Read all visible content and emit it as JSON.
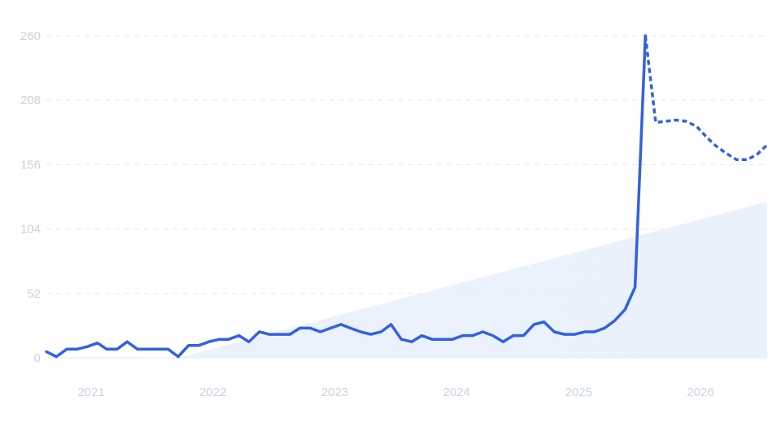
{
  "chart_data": {
    "type": "line",
    "title": "",
    "xlabel": "",
    "ylabel": "",
    "ylim": [
      0,
      260
    ],
    "xlim": [
      "2020-09-01",
      "2026-08-01"
    ],
    "grid": true,
    "legend": "none",
    "y_ticks": [
      "0",
      "52",
      "104",
      "156",
      "208",
      "260"
    ],
    "x_ticks": [
      {
        "label": "2021",
        "date": "2021-01-01"
      },
      {
        "label": "2022",
        "date": "2022-01-01"
      },
      {
        "label": "2023",
        "date": "2023-01-01"
      },
      {
        "label": "2024",
        "date": "2024-01-01"
      },
      {
        "label": "2025",
        "date": "2025-01-01"
      },
      {
        "label": "2026",
        "date": "2026-01-01"
      }
    ],
    "colors": {
      "line": "#3162e0",
      "area": "#eaf1fd",
      "grid": "#e3e8f1",
      "tick": "#c9d2e3"
    },
    "series": [
      {
        "style": "solid",
        "x": [
          "2020-09-01",
          "2020-10-01",
          "2020-11-01",
          "2020-12-01",
          "2021-01-01",
          "2021-02-01",
          "2021-03-01",
          "2021-04-01",
          "2021-05-01",
          "2021-06-01",
          "2021-07-01",
          "2021-08-01",
          "2021-09-01",
          "2021-10-01",
          "2021-11-01",
          "2021-12-01",
          "2022-01-01",
          "2022-02-01",
          "2022-03-01",
          "2022-04-01",
          "2022-05-01",
          "2022-06-01",
          "2022-07-01",
          "2022-08-01",
          "2022-09-01",
          "2022-10-01",
          "2022-11-01",
          "2022-12-01",
          "2023-01-01",
          "2023-02-01",
          "2023-03-01",
          "2023-04-01",
          "2023-05-01",
          "2023-06-01",
          "2023-07-01",
          "2023-08-01",
          "2023-09-01",
          "2023-10-01",
          "2023-11-01",
          "2023-12-01",
          "2024-01-01",
          "2024-02-01",
          "2024-03-01",
          "2024-04-01",
          "2024-05-01",
          "2024-06-01",
          "2024-07-01",
          "2024-08-01",
          "2024-09-01",
          "2024-10-01",
          "2024-11-01",
          "2024-12-01",
          "2025-01-01",
          "2025-02-01",
          "2025-03-01",
          "2025-04-01",
          "2025-05-01",
          "2025-06-01",
          "2025-07-01",
          "2025-08-01"
        ],
        "values": [
          5,
          1,
          7,
          7,
          9,
          12,
          7,
          7,
          13,
          7,
          7,
          7,
          7,
          1,
          10,
          10,
          13,
          15,
          15,
          18,
          13,
          21,
          19,
          19,
          19,
          24,
          24,
          21,
          24,
          27,
          24,
          21,
          19,
          21,
          27,
          15,
          13,
          18,
          15,
          15,
          15,
          18,
          18,
          21,
          18,
          13,
          18,
          18,
          27,
          29,
          21,
          19,
          19,
          21,
          21,
          24,
          30,
          39,
          57,
          260
        ]
      },
      {
        "style": "dotted",
        "x": [
          "2025-08-01",
          "2025-09-01",
          "2025-10-01",
          "2025-11-01",
          "2025-12-01",
          "2026-01-01",
          "2026-02-01",
          "2026-03-01",
          "2026-04-01",
          "2026-05-01",
          "2026-06-01",
          "2026-07-01",
          "2026-08-01"
        ],
        "values": [
          260,
          190,
          191,
          192,
          191,
          187,
          178,
          171,
          165,
          160,
          160,
          164,
          172
        ]
      }
    ],
    "background_area": {
      "x": [
        "2021-10-01",
        "2026-08-01"
      ],
      "values": [
        0,
        126
      ]
    }
  }
}
